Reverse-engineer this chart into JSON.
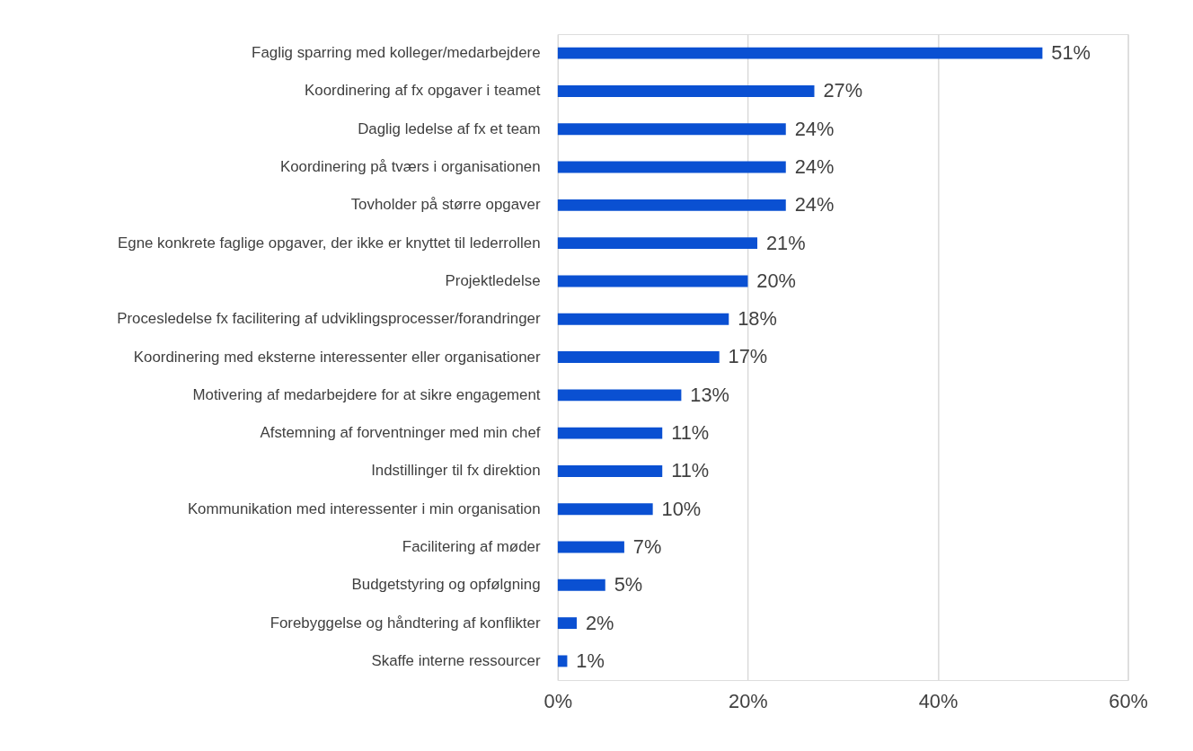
{
  "chart_data": {
    "type": "bar",
    "orientation": "horizontal",
    "categories": [
      "Faglig sparring med kolleger/medarbejdere",
      "Koordinering af fx opgaver i teamet",
      "Daglig ledelse af fx et team",
      "Koordinering på tværs i organisationen",
      "Tovholder på større opgaver",
      "Egne konkrete faglige opgaver, der ikke er knyttet til lederrollen",
      "Projektledelse",
      "Procesledelse fx facilitering af udviklingsprocesser/forandringer",
      "Koordinering med eksterne interessenter eller organisationer",
      "Motivering af medarbejdere for at sikre engagement",
      "Afstemning af forventninger med min chef",
      "Indstillinger til fx direktion",
      "Kommunikation med interessenter i min organisation",
      "Facilitering af møder",
      "Budgetstyring og opfølgning",
      "Forebyggelse og håndtering af konflikter",
      "Skaffe interne ressourcer"
    ],
    "values": [
      51,
      27,
      24,
      24,
      24,
      21,
      20,
      18,
      17,
      13,
      11,
      11,
      10,
      7,
      5,
      2,
      1
    ],
    "value_labels": [
      "51%",
      "27%",
      "24%",
      "24%",
      "24%",
      "21%",
      "20%",
      "18%",
      "17%",
      "13%",
      "11%",
      "11%",
      "10%",
      "7%",
      "5%",
      "2%",
      "1%"
    ],
    "color": "#0a50d2",
    "xlim": [
      0,
      60
    ],
    "xticks": [
      {
        "value": 0,
        "label": "0%"
      },
      {
        "value": 20,
        "label": "20%"
      },
      {
        "value": 40,
        "label": "40%"
      },
      {
        "value": 60,
        "label": "60%"
      }
    ],
    "grid": "x"
  }
}
